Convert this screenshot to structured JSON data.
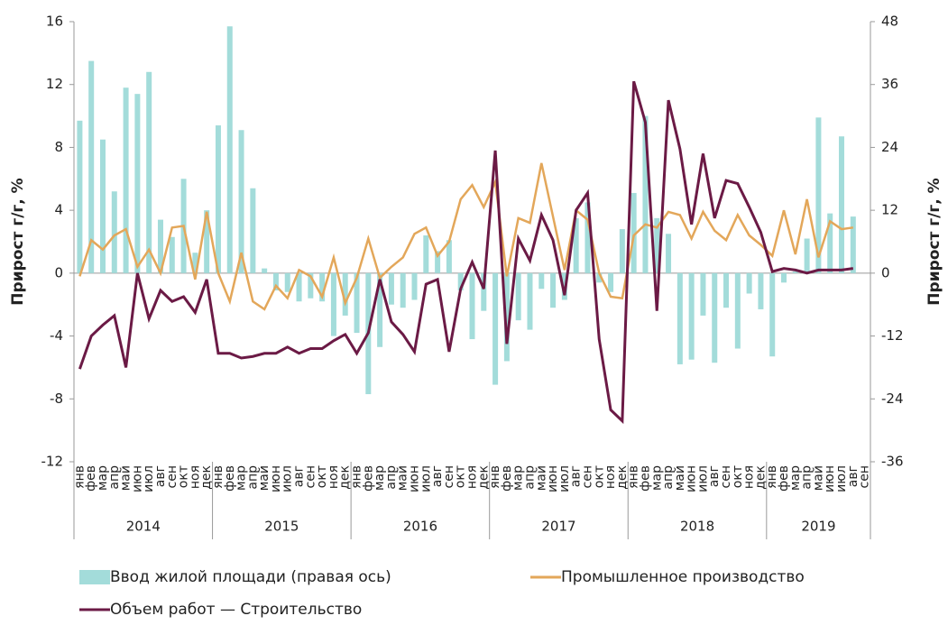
{
  "chart_data": {
    "type": "bar_line",
    "y_label": "Прирост г/г, %",
    "y2_label": "Прирост г/г, %",
    "categories": [
      "янв",
      "фев",
      "мар",
      "апр",
      "май",
      "июн",
      "июл",
      "авг",
      "сен",
      "окт",
      "ноя",
      "дек",
      "янв",
      "фев",
      "мар",
      "апр",
      "май",
      "июн",
      "июл",
      "авг",
      "сен",
      "окт",
      "ноя",
      "дек",
      "янв",
      "фев",
      "мар",
      "апр",
      "май",
      "июн",
      "июл",
      "авг",
      "сен",
      "окт",
      "ноя",
      "дек",
      "янв",
      "фев",
      "мар",
      "апр",
      "май",
      "июн",
      "июл",
      "авг",
      "сен",
      "окт",
      "ноя",
      "дек",
      "янв",
      "фев",
      "мар",
      "апр",
      "май",
      "июн",
      "июл",
      "авг",
      "сен",
      "окт",
      "ноя",
      "дек",
      "янв",
      "фев",
      "мар",
      "апр",
      "май",
      "июн",
      "июл",
      "авг",
      "сен"
    ],
    "years": [
      "2014",
      "2015",
      "2016",
      "2017",
      "2018",
      "2019"
    ],
    "ylim": [
      -12,
      16
    ],
    "yticks": [
      -12,
      -8,
      -4,
      0,
      4,
      8,
      12,
      16
    ],
    "y2lim": [
      -36,
      48
    ],
    "y2ticks": [
      -36,
      -24,
      -12,
      0,
      12,
      24,
      36,
      48
    ],
    "series": [
      {
        "name": "Ввод жилой площади (правая ось)",
        "type": "bar",
        "axis": "y2",
        "color": "#a3dcda",
        "values": [
          29.1,
          40.5,
          25.5,
          15.6,
          35.4,
          34.2,
          38.4,
          10.2,
          6.9,
          18.0,
          3.9,
          12.0,
          28.2,
          47.1,
          27.3,
          16.2,
          0.9,
          -3.3,
          -3.6,
          -5.4,
          -4.8,
          -5.4,
          -12.0,
          -8.1,
          -11.4,
          -23.1,
          -14.1,
          -6.0,
          -6.6,
          -5.1,
          7.2,
          4.2,
          6.3,
          -3.3,
          -12.6,
          -7.2,
          -21.3,
          -16.8,
          -9.0,
          -10.8,
          -3.0,
          -6.6,
          -5.1,
          10.5,
          13.5,
          -1.8,
          -3.6,
          8.4,
          15.3,
          30.0,
          10.5,
          7.5,
          -17.4,
          -16.5,
          -8.1,
          -17.1,
          -6.6,
          -14.4,
          -3.9,
          -6.9,
          -15.9,
          -1.8,
          0.3,
          6.6,
          29.7,
          11.4,
          26.1,
          10.8,
          null
        ]
      },
      {
        "name": "Промышленное производство",
        "type": "line",
        "color": "#e3a75a",
        "values": [
          -0.2,
          2.1,
          1.5,
          2.4,
          2.8,
          0.4,
          1.5,
          0,
          2.9,
          3.0,
          -0.4,
          3.9,
          0,
          -1.8,
          1.3,
          -1.8,
          -2.3,
          -0.8,
          -1.6,
          0.2,
          -0.2,
          -1.5,
          1.0,
          -1.9,
          -0.3,
          2.2,
          -0.3,
          0.4,
          1.0,
          2.5,
          2.9,
          1.1,
          2.0,
          4.7,
          5.6,
          4.2,
          5.8,
          -0.2,
          3.5,
          3.2,
          7.0,
          3.6,
          0.2,
          4.0,
          3.4,
          0,
          -1.5,
          -1.6,
          2.4,
          3.1,
          2.9,
          3.9,
          3.7,
          2.2,
          3.9,
          2.7,
          2.1,
          3.7,
          2.4,
          1.8,
          1.1,
          4.0,
          1.2,
          4.7,
          1.0,
          3.3,
          2.8,
          2.9,
          null
        ]
      },
      {
        "name": "Объем работ — Строительство",
        "type": "line",
        "color": "#6b1a45",
        "values": [
          -6.1,
          -4.0,
          -3.3,
          -2.7,
          -6.0,
          0,
          -2.9,
          -1.1,
          -1.8,
          -1.5,
          -2.5,
          -0.4,
          -5.1,
          -5.1,
          -5.4,
          -5.3,
          -5.1,
          -5.1,
          -4.7,
          -5.1,
          -4.8,
          -4.8,
          -4.3,
          -3.9,
          -5.1,
          -3.8,
          -0.4,
          -3.1,
          -3.9,
          -5.0,
          -0.7,
          -0.4,
          -5.0,
          -1.0,
          0.7,
          -1.0,
          7.8,
          -4.5,
          2.2,
          0.8,
          3.7,
          2.1,
          -1.4,
          4.0,
          5.1,
          -4.2,
          -8.7,
          -9.4,
          12.2,
          9.6,
          -2.4,
          11.0,
          7.9,
          3.1,
          7.6,
          3.5,
          5.9,
          5.7,
          4.2,
          2.6,
          0.1,
          0.3,
          0.2,
          0,
          0.2,
          0.2,
          0.2,
          0.3,
          null
        ]
      }
    ]
  }
}
